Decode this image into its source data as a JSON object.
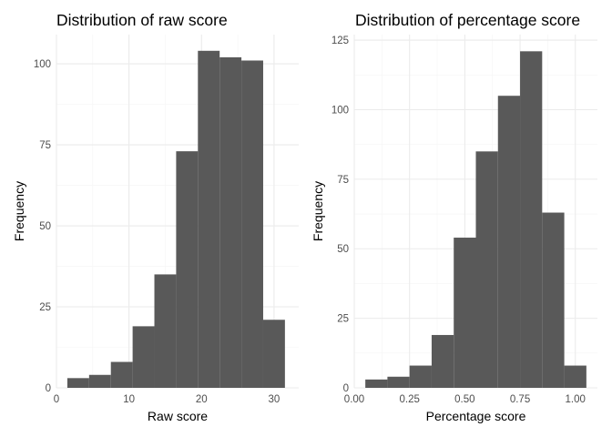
{
  "chart_data": [
    {
      "type": "bar",
      "title": "Distribution of raw score",
      "xlabel": "Raw score",
      "ylabel": "Frequency",
      "xlim": [
        0,
        33.4
      ],
      "ylim": [
        0,
        109
      ],
      "xticks": [
        0,
        10,
        20,
        30
      ],
      "xtick_labels": [
        "0",
        "10",
        "20",
        "30"
      ],
      "yticks": [
        0,
        25,
        50,
        75,
        100
      ],
      "ytick_labels": [
        "0",
        "25",
        "50",
        "75",
        "100"
      ],
      "grid": true,
      "bins": [
        {
          "x0": 1.5,
          "x1": 4.5,
          "value": 3
        },
        {
          "x0": 4.5,
          "x1": 7.5,
          "value": 4
        },
        {
          "x0": 7.5,
          "x1": 10.5,
          "value": 8
        },
        {
          "x0": 10.5,
          "x1": 13.5,
          "value": 19
        },
        {
          "x0": 13.5,
          "x1": 16.5,
          "value": 35
        },
        {
          "x0": 16.5,
          "x1": 19.5,
          "value": 73
        },
        {
          "x0": 19.5,
          "x1": 22.5,
          "value": 104
        },
        {
          "x0": 22.5,
          "x1": 25.5,
          "value": 102
        },
        {
          "x0": 25.5,
          "x1": 28.5,
          "value": 101
        },
        {
          "x0": 28.5,
          "x1": 31.5,
          "value": 21
        }
      ],
      "bar_color": "#595959"
    },
    {
      "type": "bar",
      "title": "Distribution of percentage score",
      "xlabel": "Percentage score",
      "ylabel": "Frequency",
      "xlim": [
        0,
        1.1
      ],
      "ylim": [
        0,
        127
      ],
      "xticks": [
        0,
        0.25,
        0.5,
        0.75,
        1.0
      ],
      "xtick_labels": [
        "0.00",
        "0.25",
        "0.50",
        "0.75",
        "1.00"
      ],
      "yticks": [
        0,
        25,
        50,
        75,
        100,
        125
      ],
      "ytick_labels": [
        "0",
        "25",
        "50",
        "75",
        "100",
        "125"
      ],
      "grid": true,
      "bins": [
        {
          "x0": 0.05,
          "x1": 0.15,
          "value": 3
        },
        {
          "x0": 0.15,
          "x1": 0.25,
          "value": 4
        },
        {
          "x0": 0.25,
          "x1": 0.35,
          "value": 8
        },
        {
          "x0": 0.35,
          "x1": 0.45,
          "value": 19
        },
        {
          "x0": 0.45,
          "x1": 0.55,
          "value": 54
        },
        {
          "x0": 0.55,
          "x1": 0.65,
          "value": 85
        },
        {
          "x0": 0.65,
          "x1": 0.75,
          "value": 105
        },
        {
          "x0": 0.75,
          "x1": 0.85,
          "value": 121
        },
        {
          "x0": 0.85,
          "x1": 0.95,
          "value": 63
        },
        {
          "x0": 0.95,
          "x1": 1.05,
          "value": 8
        }
      ],
      "bar_color": "#595959"
    }
  ]
}
